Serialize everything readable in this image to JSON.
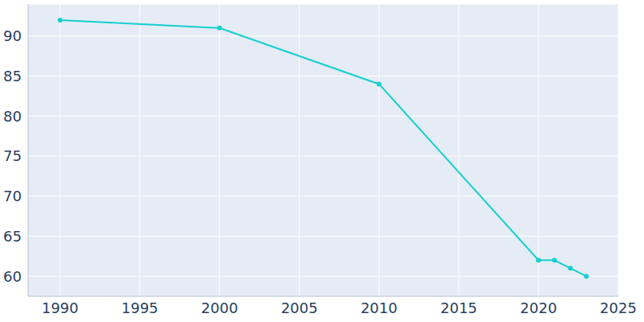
{
  "chart_data": {
    "type": "line",
    "x": [
      1990,
      2000,
      2010,
      2020,
      2021,
      2022,
      2023
    ],
    "values": [
      92,
      91,
      84,
      62,
      62,
      61,
      60
    ],
    "color": "#17cfcf",
    "marker": "circle",
    "xlim": [
      1988,
      2025
    ],
    "xticks": [
      1990,
      1995,
      2000,
      2005,
      2010,
      2015,
      2020,
      2025
    ],
    "ylim": [
      57.5,
      94
    ],
    "yticks": [
      60,
      65,
      70,
      75,
      80,
      85,
      90
    ],
    "grid": true
  }
}
